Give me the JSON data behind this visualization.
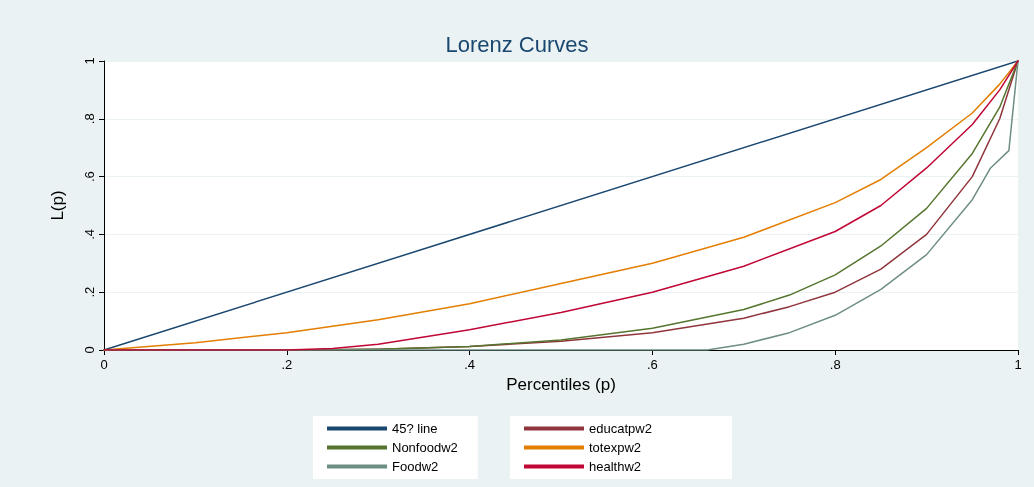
{
  "chart_data": {
    "type": "line",
    "title": "Lorenz Curves",
    "xlabel": "Percentiles (p)",
    "ylabel": "L(p)",
    "xlim": [
      0,
      1
    ],
    "ylim": [
      0,
      1
    ],
    "xticks": [
      0,
      {
        "value": 0.2,
        "label": ".2"
      },
      {
        "value": 0.4,
        "label": ".4"
      },
      {
        "value": 0.6,
        "label": ".6"
      },
      {
        "value": 0.8,
        "label": ".8"
      },
      1
    ],
    "yticks": [
      0,
      {
        "value": 0.2,
        "label": ".2"
      },
      {
        "value": 0.4,
        "label": ".4"
      },
      {
        "value": 0.6,
        "label": ".6"
      },
      {
        "value": 0.8,
        "label": ".8"
      },
      1
    ],
    "grid": "y",
    "legend": "bottom",
    "marker": "none",
    "line_style": "solid",
    "series": [
      {
        "name": "45? line",
        "color": "#1a476f",
        "x": [
          0,
          1
        ],
        "values": [
          0,
          1
        ]
      },
      {
        "name": "educatpw2",
        "color": "#90353b",
        "x": [
          0,
          0.2,
          0.3,
          0.4,
          0.5,
          0.6,
          0.7,
          0.75,
          0.8,
          0.85,
          0.9,
          0.95,
          0.98,
          1
        ],
        "values": [
          0,
          0,
          0.003,
          0.012,
          0.03,
          0.06,
          0.11,
          0.15,
          0.2,
          0.28,
          0.4,
          0.6,
          0.8,
          1
        ]
      },
      {
        "name": "Nonfoodw2",
        "color": "#55752f",
        "x": [
          0,
          0.2,
          0.3,
          0.4,
          0.5,
          0.6,
          0.7,
          0.75,
          0.8,
          0.85,
          0.9,
          0.95,
          0.98,
          1
        ],
        "values": [
          0,
          0,
          0.003,
          0.012,
          0.035,
          0.075,
          0.14,
          0.19,
          0.26,
          0.36,
          0.49,
          0.68,
          0.84,
          1
        ]
      },
      {
        "name": "totexpw2",
        "color": "#e37e00",
        "x": [
          0,
          0.1,
          0.2,
          0.3,
          0.4,
          0.5,
          0.6,
          0.7,
          0.8,
          0.85,
          0.9,
          0.95,
          0.98,
          1
        ],
        "values": [
          0,
          0.025,
          0.06,
          0.105,
          0.16,
          0.23,
          0.3,
          0.39,
          0.51,
          0.59,
          0.7,
          0.82,
          0.92,
          1
        ]
      },
      {
        "name": "Foodw2",
        "color": "#6e8e84",
        "x": [
          0,
          0.66,
          0.7,
          0.75,
          0.8,
          0.85,
          0.9,
          0.95,
          0.97,
          0.99,
          1
        ],
        "values": [
          0,
          0,
          0.02,
          0.06,
          0.12,
          0.21,
          0.33,
          0.52,
          0.63,
          0.69,
          1
        ]
      },
      {
        "name": "healthw2",
        "color": "#c10534",
        "x": [
          0,
          0.2,
          0.25,
          0.3,
          0.4,
          0.5,
          0.6,
          0.7,
          0.8,
          0.85,
          0.9,
          0.95,
          0.98,
          1
        ],
        "values": [
          0,
          0,
          0.005,
          0.02,
          0.07,
          0.13,
          0.2,
          0.29,
          0.41,
          0.5,
          0.63,
          0.78,
          0.9,
          1
        ]
      }
    ]
  }
}
